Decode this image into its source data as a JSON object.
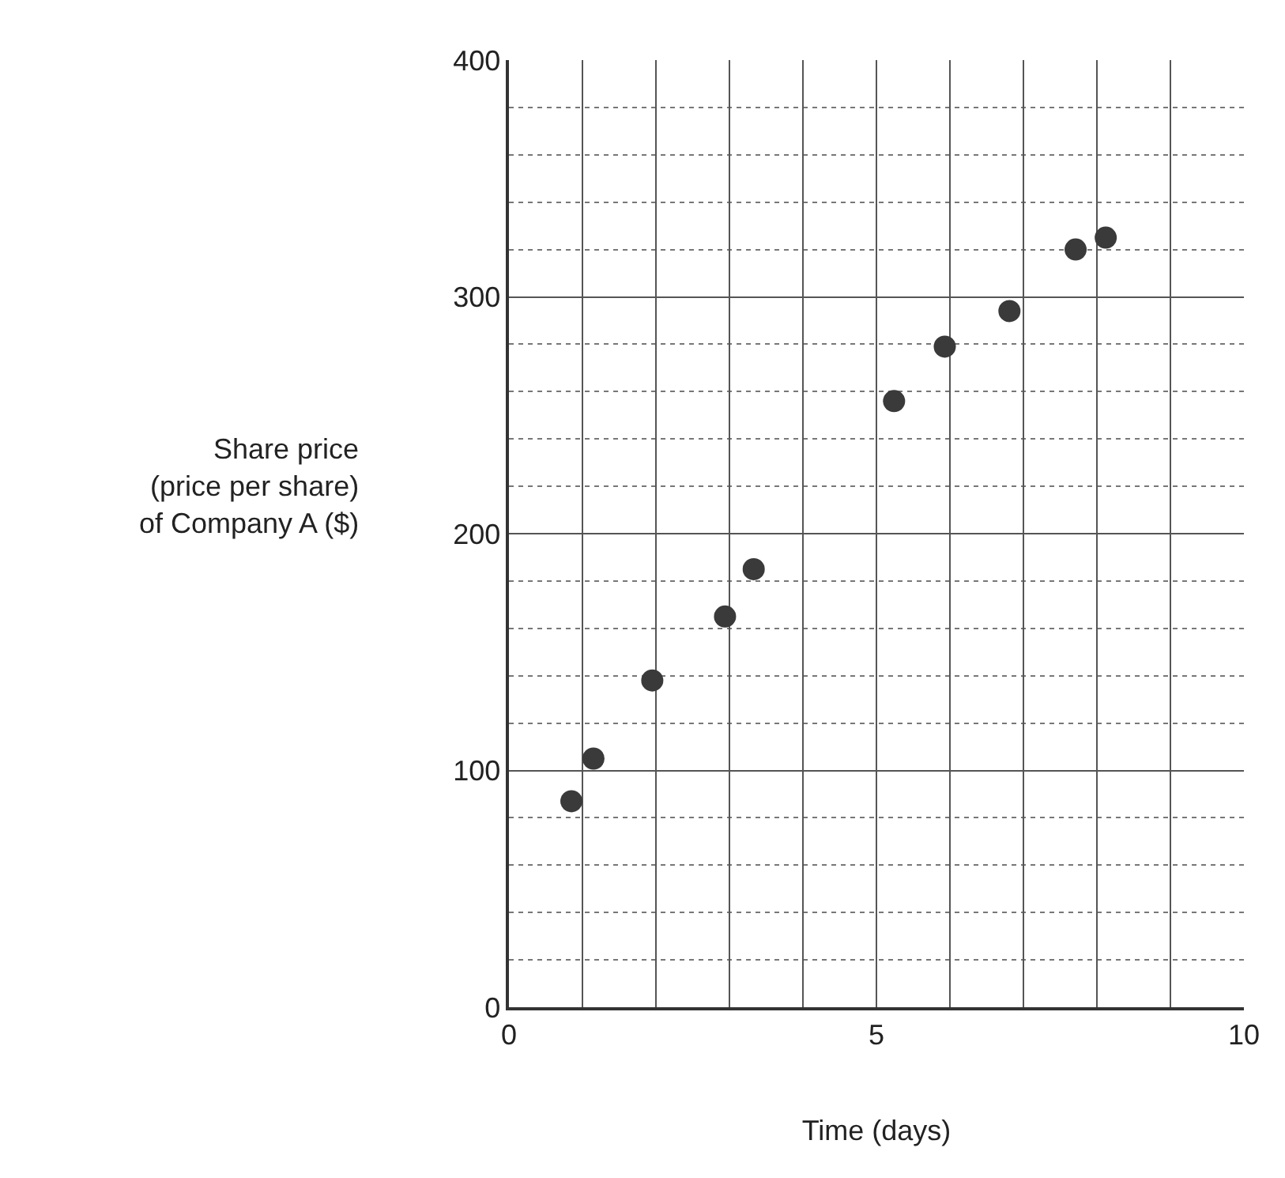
{
  "chart_data": {
    "type": "scatter",
    "xlabel": "Time (days)",
    "ylabel": "Share price\n(price per share)\nof Company A ($)",
    "x": [
      0.85,
      1.15,
      1.95,
      2.94,
      3.33,
      5.24,
      5.93,
      6.81,
      7.71,
      8.12
    ],
    "series": [
      {
        "color": "#3a3a3a",
        "values": [
          87,
          105,
          138,
          165,
          185,
          256,
          279,
          294,
          320,
          325
        ]
      }
    ],
    "marker": "circle",
    "xlim": [
      0,
      10
    ],
    "ylim": [
      0,
      400
    ],
    "xticks": [
      0,
      {
        "value": 1,
        "label": null
      },
      {
        "value": 2,
        "label": null
      },
      {
        "value": 3,
        "label": null
      },
      {
        "value": 4,
        "label": null
      },
      5,
      {
        "value": 6,
        "label": null
      },
      {
        "value": 7,
        "label": null
      },
      {
        "value": 8,
        "label": null
      },
      {
        "value": 9,
        "label": null
      },
      10
    ],
    "yticks": [
      0,
      {
        "value": 20,
        "label": null
      },
      {
        "value": 40,
        "label": null
      },
      {
        "value": 60,
        "label": null
      },
      {
        "value": 80,
        "label": null
      },
      100,
      {
        "value": 120,
        "label": null
      },
      {
        "value": 140,
        "label": null
      },
      {
        "value": 160,
        "label": null
      },
      {
        "value": 180,
        "label": null
      },
      200,
      {
        "value": 220,
        "label": null
      },
      {
        "value": 240,
        "label": null
      },
      {
        "value": 260,
        "label": null
      },
      {
        "value": 280,
        "label": null
      },
      300,
      {
        "value": 320,
        "label": null
      },
      {
        "value": 340,
        "label": null
      },
      {
        "value": 360,
        "label": null
      },
      {
        "value": 380,
        "label": null
      },
      400
    ],
    "grid": true
  }
}
